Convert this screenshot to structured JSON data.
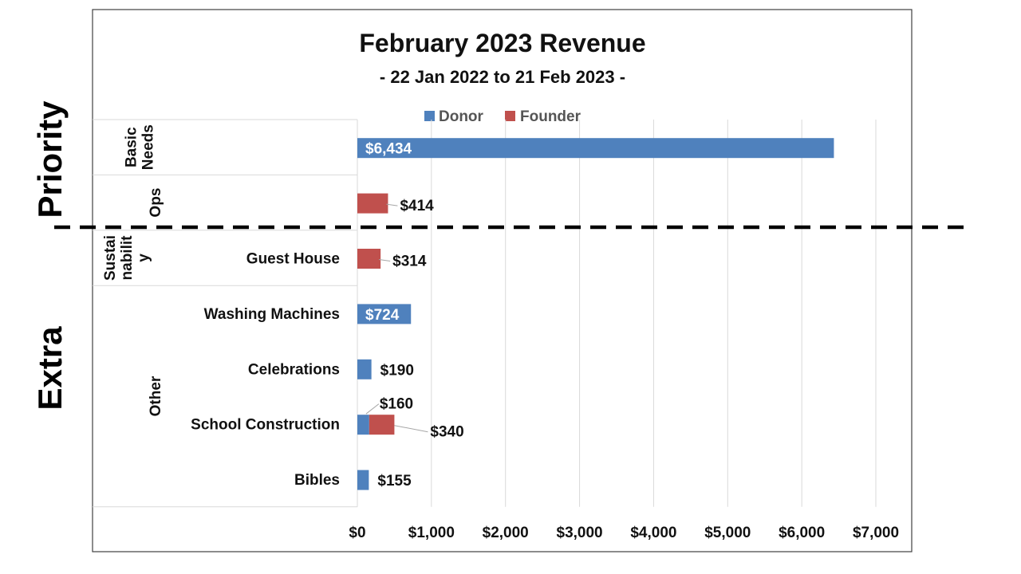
{
  "chart_data": {
    "type": "bar",
    "orientation": "horizontal",
    "stacked": true,
    "title": "February 2023 Revenue",
    "subtitle": "- 22 Jan 2022 to 21 Feb 2023 -",
    "legend": [
      {
        "name": "Donor",
        "color": "#4f81bd"
      },
      {
        "name": "Founder",
        "color": "#c0504d"
      }
    ],
    "x_ticks": [
      "$0",
      "$1,000",
      "$2,000",
      "$3,000",
      "$4,000",
      "$5,000",
      "$6,000",
      "$7,000"
    ],
    "xlim": [
      0,
      7000
    ],
    "grid": true,
    "legend_position": "top",
    "section_labels": {
      "top": "Priority",
      "bottom": "Extra"
    },
    "groups": [
      {
        "label": "Basic Needs",
        "lines": [
          "Basic",
          "Needs"
        ]
      },
      {
        "label": "Ops",
        "lines": [
          "Ops"
        ]
      },
      {
        "label": "Sustainability",
        "lines": [
          "Sustai",
          "nabilit",
          "y"
        ]
      },
      {
        "label": "Other",
        "lines": [
          "Other"
        ]
      }
    ],
    "categories": [
      {
        "label": "",
        "group": "Basic Needs",
        "donor": 6434,
        "founder": 0,
        "donor_label": "$6,434",
        "founder_label": ""
      },
      {
        "label": "",
        "group": "Ops",
        "donor": 0,
        "founder": 414,
        "donor_label": "",
        "founder_label": "$414"
      },
      {
        "label": "Guest House",
        "group": "Sustainability",
        "donor": 0,
        "founder": 314,
        "donor_label": "",
        "founder_label": "$314"
      },
      {
        "label": "Washing Machines",
        "group": "Other",
        "donor": 724,
        "founder": 0,
        "donor_label": "$724",
        "founder_label": ""
      },
      {
        "label": "Celebrations",
        "group": "Other",
        "donor": 190,
        "founder": 0,
        "donor_label": "$190",
        "founder_label": ""
      },
      {
        "label": "School Construction",
        "group": "Other",
        "donor": 160,
        "founder": 340,
        "donor_label": "$160",
        "founder_label": "$340"
      },
      {
        "label": "Bibles",
        "group": "Other",
        "donor": 155,
        "founder": 0,
        "donor_label": "$155",
        "founder_label": ""
      }
    ]
  }
}
